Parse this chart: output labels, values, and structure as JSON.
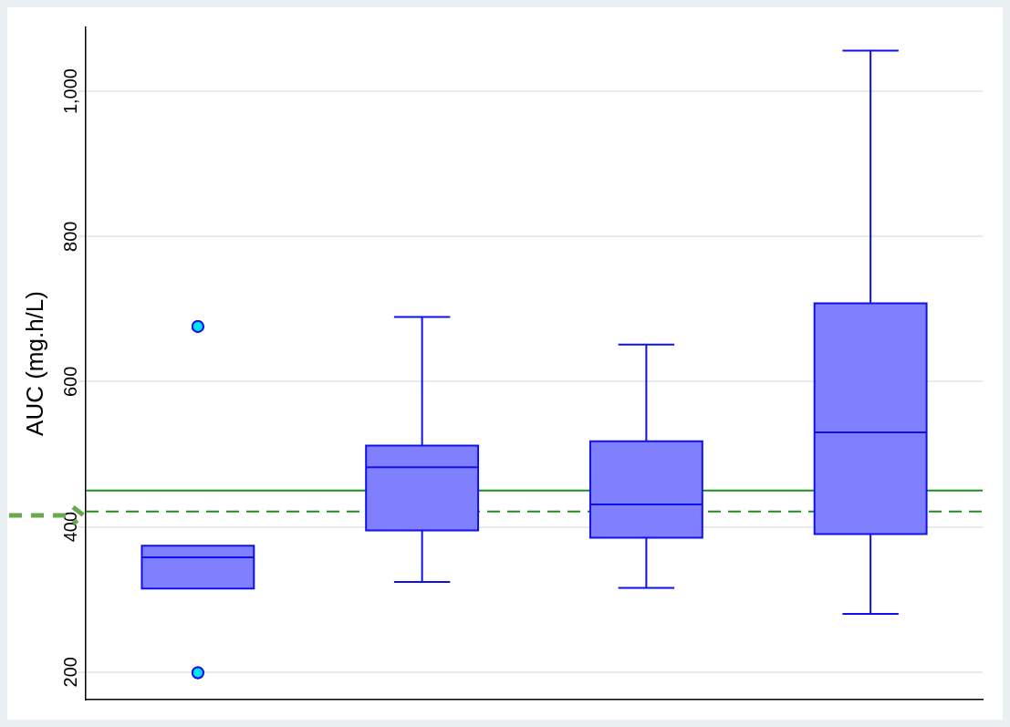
{
  "chart_data": {
    "type": "box",
    "ylabel": "AUC (mg.h/L)",
    "categories": [
      null,
      null,
      null,
      null
    ],
    "color": "#8080ff",
    "boxes": [
      {
        "low": 315,
        "q1": 315,
        "median": 358,
        "q3": 374,
        "high": 374,
        "outliers": [
          676,
          199
        ]
      },
      {
        "low": 324,
        "q1": 395,
        "median": 482,
        "q3": 512,
        "high": 689
      },
      {
        "low": 316,
        "q1": 385,
        "median": 431,
        "q3": 518,
        "high": 651
      },
      {
        "low": 280,
        "q1": 390,
        "median": 530,
        "q3": 708,
        "high": 1056
      }
    ],
    "ylim": [
      162,
      1088
    ],
    "yticks": [
      200,
      400,
      600,
      800,
      {
        "value": 1000,
        "label": "1,000"
      }
    ],
    "grid": "y",
    "legend": false,
    "ref_lines": [
      {
        "axis": "y",
        "value": 450,
        "color": "#1e8c1e",
        "line_style": "solid"
      },
      {
        "axis": "y",
        "value": 421,
        "color": "#1e8c1e",
        "line_style": "dashed"
      }
    ]
  }
}
